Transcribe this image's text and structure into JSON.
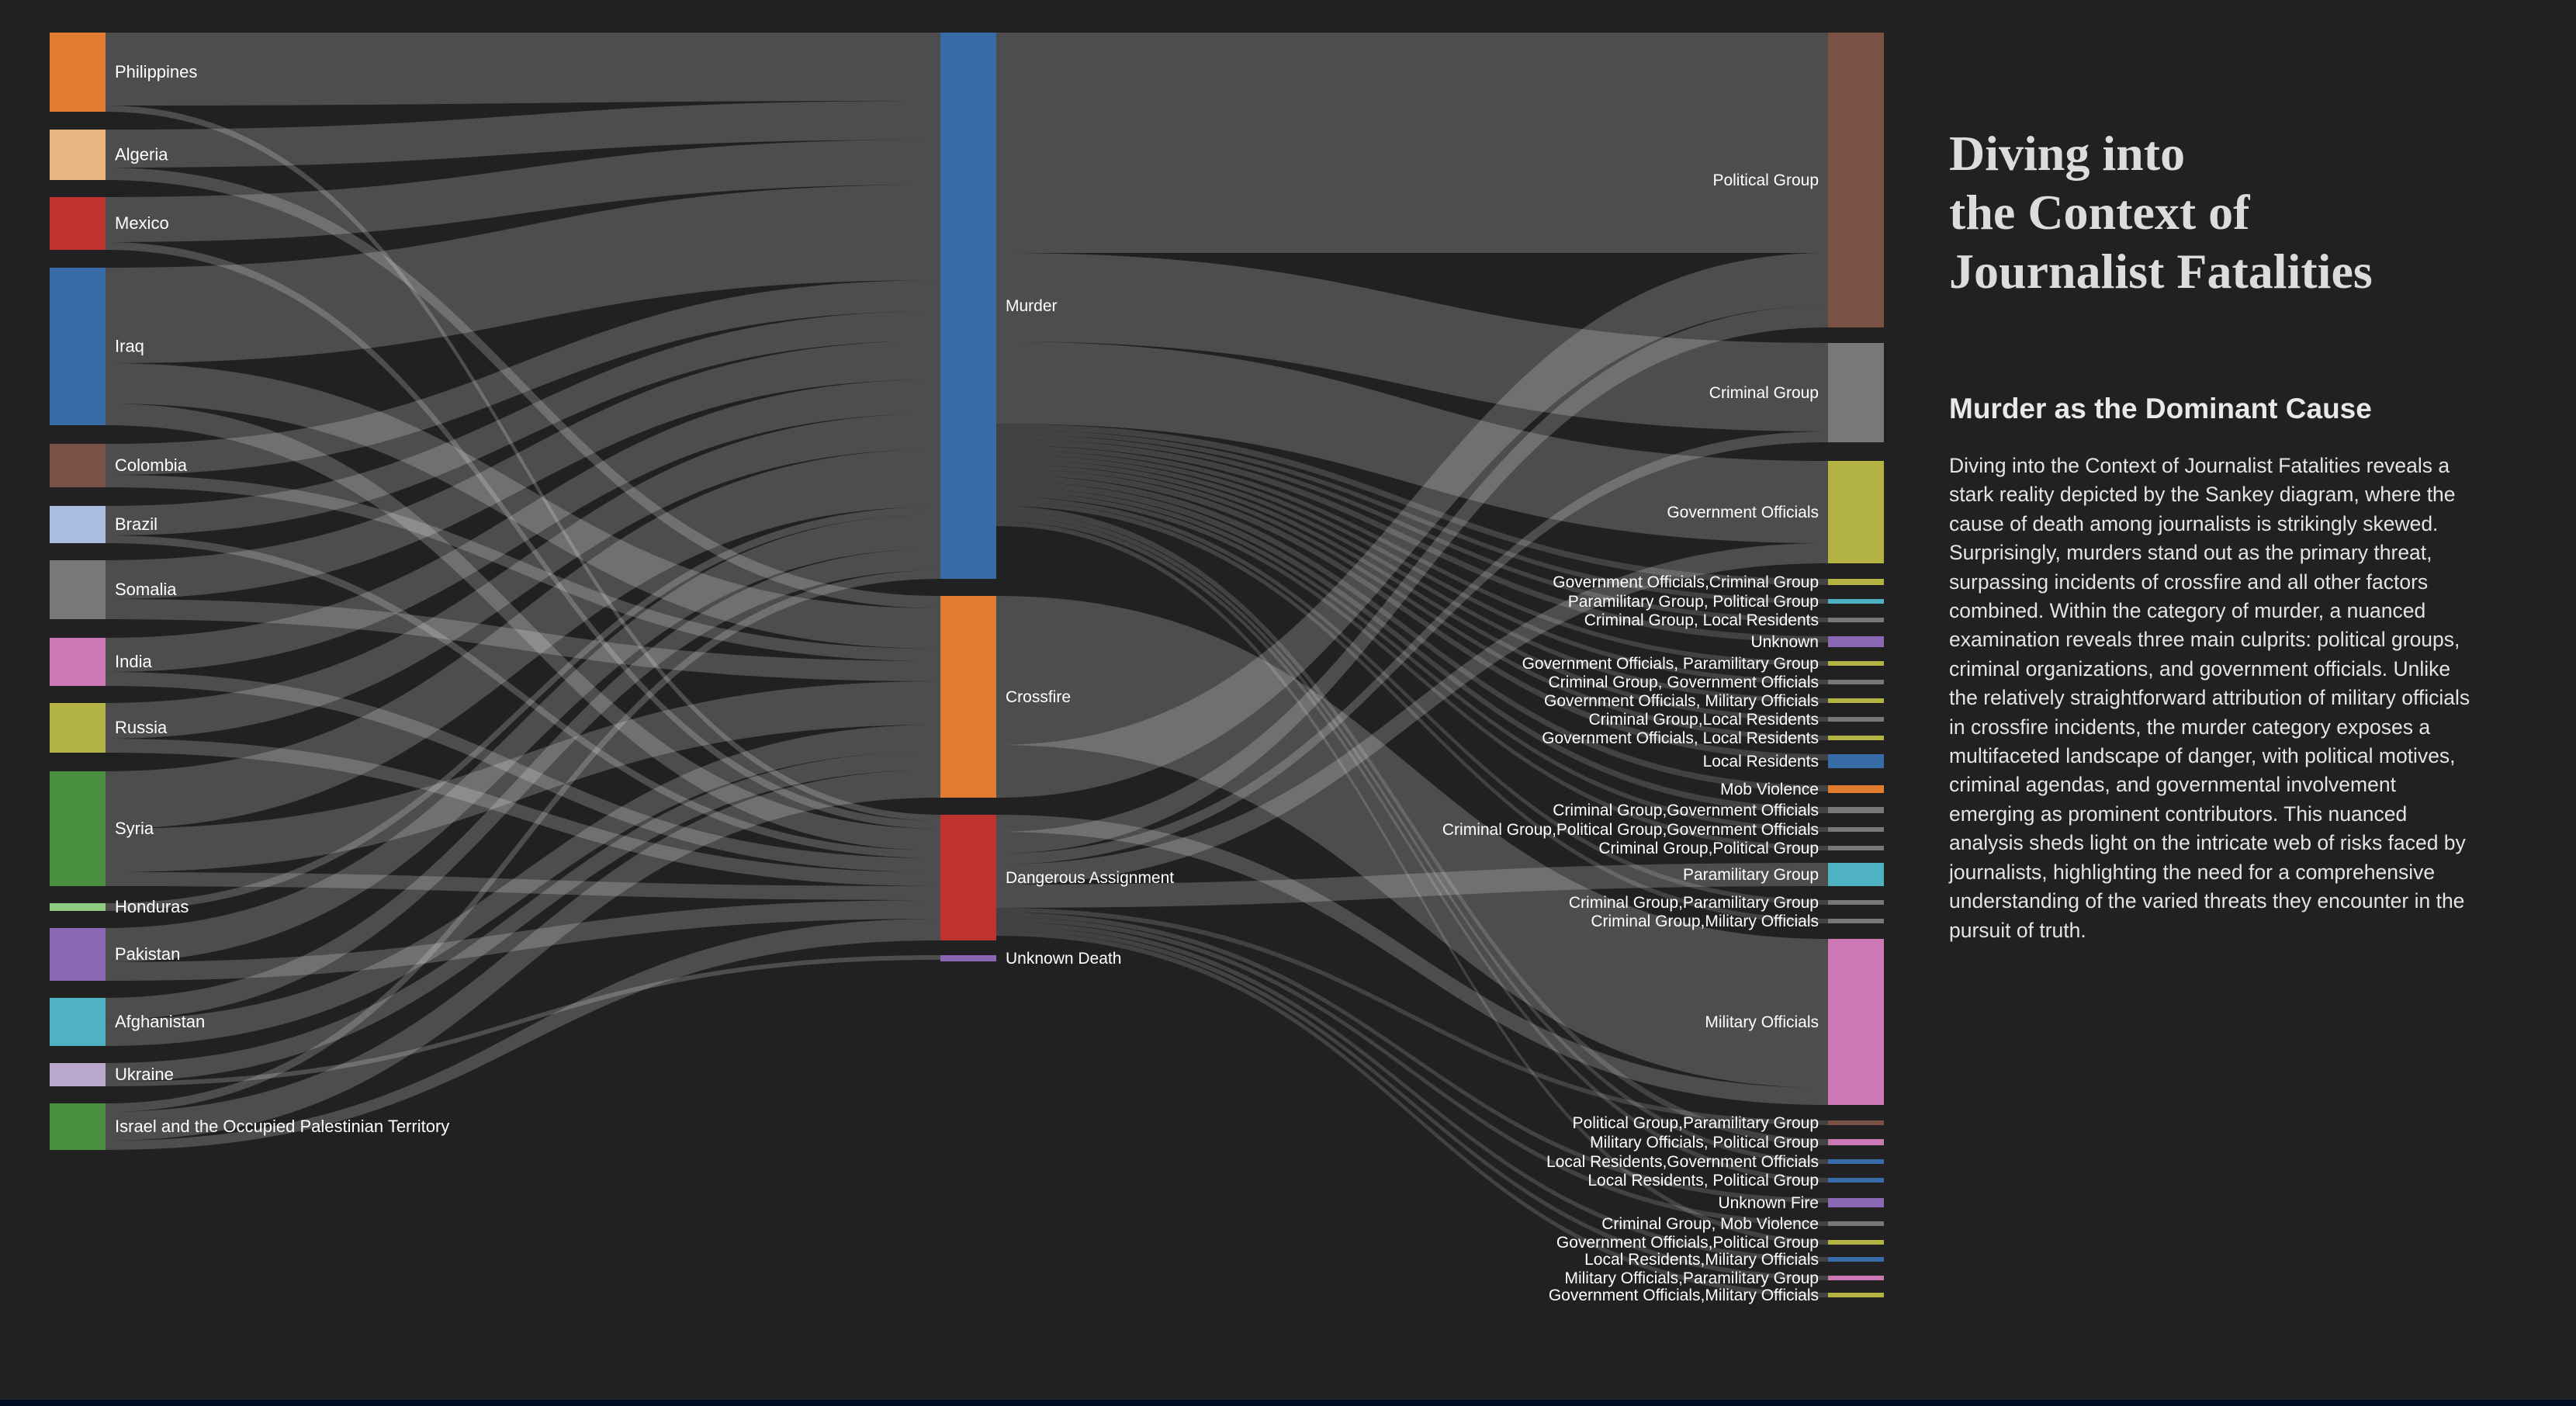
{
  "colors": {
    "background": "#212121",
    "link": "#ffffff"
  },
  "diagram": {
    "type": "sankey",
    "sources": [
      {
        "label": "Philippines",
        "color": "#e07b2f"
      },
      {
        "label": "Algeria",
        "color": "#e8b47f"
      },
      {
        "label": "Mexico",
        "color": "#be3330"
      },
      {
        "label": "Iraq",
        "color": "#376ca8"
      },
      {
        "label": "Colombia",
        "color": "#7a5144"
      },
      {
        "label": "Brazil",
        "color": "#a9bedf"
      },
      {
        "label": "Somalia",
        "color": "#787878"
      },
      {
        "label": "India",
        "color": "#cc78b4"
      },
      {
        "label": "Russia",
        "color": "#b3b244"
      },
      {
        "label": "Syria",
        "color": "#4a9040"
      },
      {
        "label": "Honduras",
        "color": "#8fcc80"
      },
      {
        "label": "Pakistan",
        "color": "#8a67b3"
      },
      {
        "label": "Afghanistan",
        "color": "#4fb2c2"
      },
      {
        "label": "Ukraine",
        "color": "#b9a8cc"
      },
      {
        "label": "Israel and the Occupied Palestinian Territory",
        "color": "#4a9040"
      }
    ],
    "causes": [
      {
        "label": "Murder",
        "color": "#376ca8"
      },
      {
        "label": "Crossfire",
        "color": "#e07b2f"
      },
      {
        "label": "Dangerous Assignment",
        "color": "#be3330"
      },
      {
        "label": "Unknown Death",
        "color": "#8a67b3"
      }
    ],
    "perpetrators": [
      {
        "label": "Political Group",
        "color": "#7a5144"
      },
      {
        "label": "Criminal Group",
        "color": "#787878"
      },
      {
        "label": "Government Officials",
        "color": "#b3b244"
      },
      {
        "label": "Government Officials,Criminal Group",
        "color": "#b3b244"
      },
      {
        "label": "Paramilitary Group, Political Group",
        "color": "#4fb2c2"
      },
      {
        "label": "Criminal Group, Local Residents",
        "color": "#787878"
      },
      {
        "label": "Unknown",
        "color": "#8a67b3"
      },
      {
        "label": "Government Officials, Paramilitary Group",
        "color": "#b3b244"
      },
      {
        "label": "Criminal Group, Government Officials",
        "color": "#787878"
      },
      {
        "label": "Government Officials, Military Officials",
        "color": "#b3b244"
      },
      {
        "label": "Criminal Group,Local Residents",
        "color": "#787878"
      },
      {
        "label": "Government Officials, Local Residents",
        "color": "#b3b244"
      },
      {
        "label": "Local Residents",
        "color": "#376ca8"
      },
      {
        "label": "Mob Violence",
        "color": "#e07b2f"
      },
      {
        "label": "Criminal Group,Government Officials",
        "color": "#787878"
      },
      {
        "label": "Criminal Group,Political Group,Government Officials",
        "color": "#787878"
      },
      {
        "label": "Criminal Group,Political Group",
        "color": "#787878"
      },
      {
        "label": "Paramilitary Group",
        "color": "#4fb2c2"
      },
      {
        "label": "Criminal Group,Paramilitary Group",
        "color": "#787878"
      },
      {
        "label": "Criminal Group,Military Officials",
        "color": "#787878"
      },
      {
        "label": "Military Officials",
        "color": "#cc78b4"
      },
      {
        "label": "Political Group,Paramilitary Group",
        "color": "#7a5144"
      },
      {
        "label": "Military Officials, Political Group",
        "color": "#cc78b4"
      },
      {
        "label": "Local Residents,Government Officials",
        "color": "#376ca8"
      },
      {
        "label": "Local Residents, Political Group",
        "color": "#376ca8"
      },
      {
        "label": "Unknown Fire",
        "color": "#8a67b3"
      },
      {
        "label": "Criminal Group, Mob Violence",
        "color": "#787878"
      },
      {
        "label": "Government Officials,Political Group",
        "color": "#b3b244"
      },
      {
        "label": "Local Residents,Military Officials",
        "color": "#376ca8"
      },
      {
        "label": "Military Officials,Paramilitary Group",
        "color": "#cc78b4"
      },
      {
        "label": "Government Officials,Military Officials",
        "color": "#b3b244"
      }
    ]
  },
  "sidebar": {
    "title_lines": [
      "Diving into",
      "the Context of",
      "Journalist Fatalities"
    ],
    "subtitle": "Murder as the Dominant Cause",
    "body": "Diving into the Context of Journalist Fatalities reveals a stark reality depicted by the Sankey diagram, where the cause of death among journalists is strikingly skewed. Surprisingly, murders stand out as the primary threat, surpassing incidents of crossfire and all other factors combined. Within the category of murder, a nuanced examination reveals three main culprits: political groups, criminal organizations, and government officials. Unlike the relatively straightforward attribution of military officials in crossfire incidents, the murder category exposes a multifaceted landscape of danger, with political motives, criminal agendas, and governmental involvement emerging as prominent contributors. This nuanced analysis sheds light on the intricate web of risks faced by journalists, highlighting the need for a comprehensive understanding of the varied threats they encounter in the pursuit of truth."
  }
}
